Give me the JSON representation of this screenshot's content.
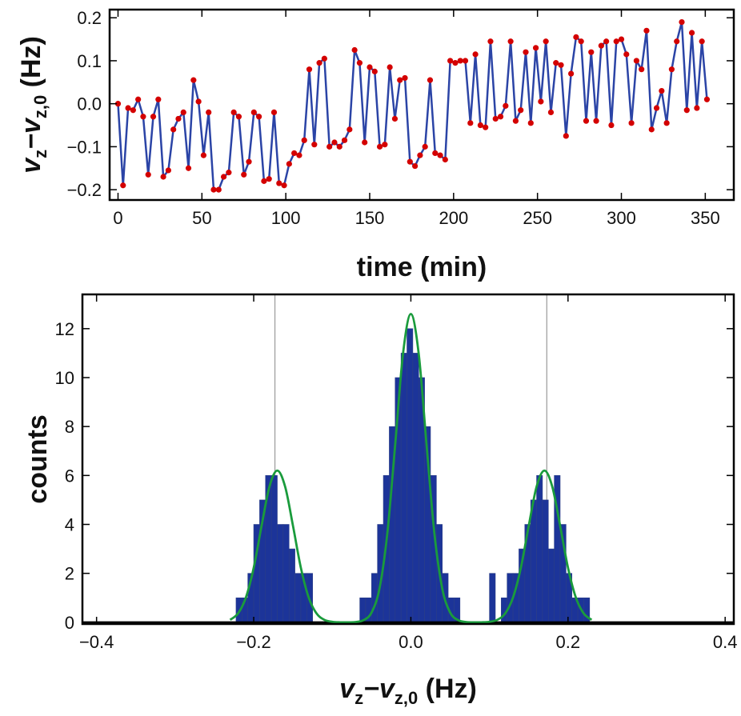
{
  "chart_data": [
    {
      "type": "line",
      "xlabel": "time (min)",
      "ylabel_parts": [
        "v",
        "z",
        "−v",
        "z,0",
        " (Hz)"
      ],
      "x": [
        0,
        3,
        6,
        9,
        12,
        15,
        18,
        21,
        24,
        27,
        30,
        33,
        36,
        39,
        42,
        45,
        48,
        51,
        54,
        57,
        60,
        63,
        66,
        69,
        72,
        75,
        78,
        81,
        84,
        87,
        90,
        93,
        96,
        99,
        102,
        105,
        108,
        111,
        114,
        117,
        120,
        123,
        126,
        129,
        132,
        135,
        138,
        141,
        144,
        147,
        150,
        153,
        156,
        159,
        162,
        165,
        168,
        171,
        174,
        177,
        180,
        183,
        186,
        189,
        192,
        195,
        198,
        201,
        204,
        207,
        210,
        213,
        216,
        219,
        222,
        225,
        228,
        231,
        234,
        237,
        240,
        243,
        246,
        249,
        252,
        255,
        258,
        261,
        264,
        267,
        270,
        273,
        276,
        279,
        282,
        285,
        288,
        291,
        294,
        297,
        300,
        303,
        306,
        309,
        312,
        315,
        318,
        321,
        324,
        327,
        330,
        333,
        336,
        339,
        342,
        345,
        348,
        351
      ],
      "series": [
        {
          "color": "#2b44a6",
          "marker_color": "#d40000",
          "values": [
            0.0,
            -0.19,
            -0.01,
            -0.015,
            0.01,
            -0.03,
            -0.165,
            -0.03,
            0.01,
            -0.17,
            -0.155,
            -0.06,
            -0.035,
            -0.02,
            -0.15,
            0.055,
            0.005,
            -0.12,
            -0.02,
            -0.2,
            -0.2,
            -0.17,
            -0.16,
            -0.02,
            -0.03,
            -0.165,
            -0.135,
            -0.02,
            -0.03,
            -0.18,
            -0.175,
            -0.02,
            -0.185,
            -0.19,
            -0.14,
            -0.115,
            -0.12,
            -0.085,
            0.08,
            -0.095,
            0.095,
            0.105,
            -0.1,
            -0.09,
            -0.1,
            -0.085,
            -0.06,
            0.125,
            0.095,
            -0.09,
            0.085,
            0.075,
            -0.1,
            -0.095,
            0.085,
            -0.035,
            0.055,
            0.06,
            -0.135,
            -0.145,
            -0.12,
            -0.1,
            0.055,
            -0.115,
            -0.12,
            -0.13,
            0.1,
            0.095,
            0.1,
            0.1,
            -0.045,
            0.115,
            -0.05,
            -0.055,
            0.145,
            -0.035,
            -0.03,
            -0.005,
            0.145,
            -0.04,
            -0.015,
            0.12,
            -0.045,
            0.13,
            0.005,
            0.145,
            -0.02,
            0.095,
            0.09,
            -0.075,
            0.07,
            0.155,
            0.145,
            -0.04,
            0.12,
            -0.04,
            0.135,
            0.145,
            -0.05,
            0.145,
            0.15,
            0.115,
            -0.045,
            0.1,
            0.08,
            0.17,
            -0.06,
            -0.01,
            0.03,
            -0.045,
            0.08,
            0.145,
            0.19,
            -0.015,
            0.165,
            -0.01,
            0.145,
            0.01
          ]
        }
      ],
      "xlim": [
        -5,
        367
      ],
      "ylim": [
        -0.224,
        0.219
      ],
      "xticks": [
        0,
        50,
        100,
        150,
        200,
        250,
        300,
        350
      ],
      "yticks": [
        {
          "value": -0.2,
          "label": "−0.2"
        },
        {
          "value": -0.1,
          "label": "−0.1"
        },
        {
          "value": 0,
          "label": "0.0"
        },
        0.1,
        0.2
      ]
    },
    {
      "type": "histogram",
      "xlabel_parts": [
        "v",
        "z",
        "−v",
        "z,0",
        " (Hz)"
      ],
      "ylabel": "counts",
      "color": "#1c3499",
      "bins": [
        -0.2225,
        -0.215,
        -0.2075,
        -0.2,
        -0.1925,
        -0.185,
        -0.1775,
        -0.17,
        -0.1625,
        -0.155,
        -0.1475,
        -0.14,
        -0.1325,
        -0.125,
        -0.1175,
        -0.11,
        -0.1025,
        -0.095,
        -0.0875,
        -0.08,
        -0.0725,
        -0.065,
        -0.0575,
        -0.05,
        -0.0425,
        -0.035,
        -0.0275,
        -0.02,
        -0.0125,
        -0.005,
        0.0025,
        0.01,
        0.0175,
        0.025,
        0.0325,
        0.04,
        0.0475,
        0.055,
        0.0625,
        0.07,
        0.0775,
        0.085,
        0.0925,
        0.1,
        0.1075,
        0.115,
        0.1225,
        0.13,
        0.1375,
        0.145,
        0.1525,
        0.16,
        0.1675,
        0.175,
        0.1825,
        0.19,
        0.1975,
        0.205,
        0.2125,
        0.22,
        0.2275
      ],
      "counts": [
        1,
        1,
        2,
        4,
        5,
        6,
        6,
        4,
        4,
        3,
        2,
        2,
        2,
        0,
        0,
        0,
        0,
        0,
        0,
        0,
        0,
        1,
        1,
        2,
        4,
        6,
        8,
        10,
        11,
        12,
        11,
        10,
        8,
        6,
        4,
        2,
        1,
        1,
        0,
        0,
        0,
        0,
        0,
        2,
        0,
        1,
        2,
        2,
        3,
        4,
        5,
        6,
        5,
        3,
        6,
        4,
        2,
        1,
        1,
        1
      ],
      "fit": {
        "color": "#1a9b3c",
        "x": [
          -0.23,
          -0.22,
          -0.21,
          -0.2,
          -0.19,
          -0.18,
          -0.17,
          -0.16,
          -0.15,
          -0.14,
          -0.13,
          -0.12,
          -0.11,
          -0.1,
          -0.09,
          -0.08,
          -0.07,
          -0.06,
          -0.05,
          -0.04,
          -0.03,
          -0.02,
          -0.01,
          0,
          0.01,
          0.02,
          0.03,
          0.04,
          0.05,
          0.06,
          0.07,
          0.08,
          0.09,
          0.1,
          0.11,
          0.12,
          0.13,
          0.14,
          0.15,
          0.16,
          0.17,
          0.18,
          0.19,
          0.2,
          0.21,
          0.22,
          0.23
        ],
        "values": [
          0.1,
          0.36,
          1.01,
          2.23,
          3.94,
          5.54,
          6.2,
          5.54,
          3.94,
          2.23,
          1.01,
          0.36,
          0.1,
          0.02,
          0,
          0,
          0.01,
          0.09,
          0.4,
          1.37,
          3.62,
          7.24,
          10.97,
          12.6,
          10.97,
          7.24,
          3.62,
          1.37,
          0.4,
          0.09,
          0.01,
          0,
          0,
          0.02,
          0.1,
          0.36,
          1.01,
          2.23,
          3.94,
          5.54,
          6.2,
          5.54,
          3.94,
          2.23,
          1.01,
          0.36,
          0.1
        ]
      },
      "reference_lines": [
        -0.173,
        0.173
      ],
      "xlim": [
        -0.418,
        0.411
      ],
      "ylim": [
        -0.07,
        13.4
      ],
      "xticks": [
        {
          "value": -0.4,
          "label": "−0.4"
        },
        {
          "value": -0.2,
          "label": "−0.2"
        },
        {
          "value": 0,
          "label": "0.0"
        },
        0.2,
        0.4
      ],
      "yticks": [
        0,
        2,
        4,
        6,
        8,
        10,
        12
      ]
    }
  ]
}
